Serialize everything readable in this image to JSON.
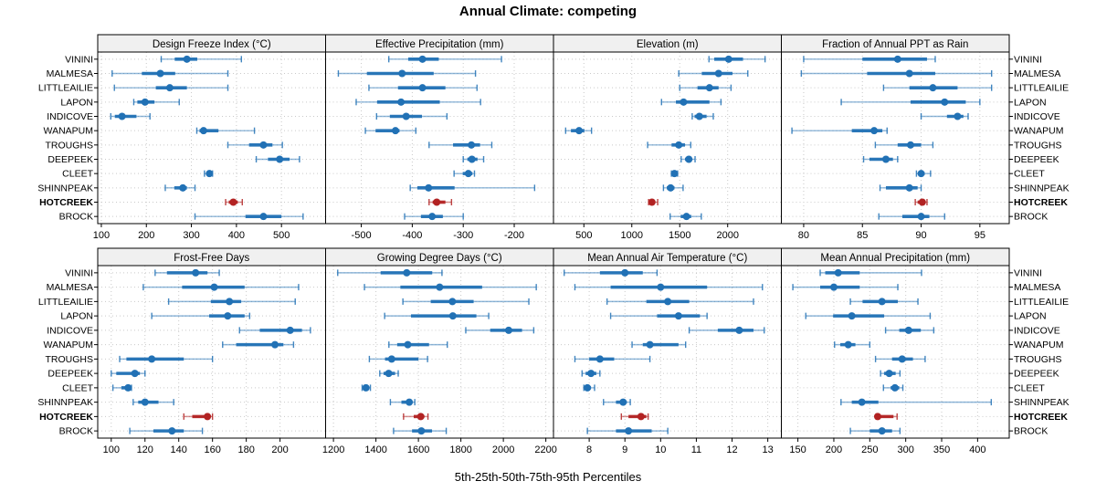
{
  "title": "Annual Climate: competing",
  "caption": "5th-25th-50th-75th-95th Percentiles",
  "percentile_labels": [
    "5th",
    "25th",
    "50th",
    "75th",
    "95th"
  ],
  "sites": [
    "VININI",
    "MALMESA",
    "LITTLEAILIE",
    "LAPON",
    "INDICOVE",
    "WANAPUM",
    "TROUGHS",
    "DEEPEEK",
    "CLEET",
    "SHINNPEAK",
    "HOTCREEK",
    "BROCK"
  ],
  "highlight_site": "HOTCREEK",
  "colors": {
    "series": "#2171b5",
    "highlight": "#b22222",
    "strip_bg": "#f0f0f0",
    "grid": "#c9c9c9",
    "border": "#000000",
    "text": "#000000"
  },
  "chart_data": {
    "type": "dotplot",
    "layout": "2 rows x 4 cols trellis, percentile whisker dotplots",
    "legend_position": "bottom caption",
    "grid": "dotted",
    "panels": [
      {
        "title": "Design Freeze Index (°C)",
        "row": 0,
        "col": 0,
        "xlim": [
          92,
          598
        ],
        "ticks": [
          100,
          200,
          300,
          400,
          500
        ],
        "values": [
          [
            233,
            263,
            290,
            313,
            411
          ],
          [
            124,
            190,
            231,
            264,
            381
          ],
          [
            129,
            221,
            252,
            290,
            381
          ],
          [
            172,
            180,
            197,
            218,
            273
          ],
          [
            121,
            130,
            146,
            178,
            208
          ],
          [
            312,
            318,
            327,
            360,
            440
          ],
          [
            381,
            428,
            460,
            480,
            502
          ],
          [
            444,
            470,
            496,
            518,
            540
          ],
          [
            329,
            334,
            340,
            344,
            347
          ],
          [
            242,
            262,
            281,
            290,
            308
          ],
          [
            376,
            383,
            393,
            403,
            413
          ],
          [
            308,
            420,
            460,
            500,
            548
          ]
        ]
      },
      {
        "title": "Effective Precipitation (mm)",
        "row": 0,
        "col": 1,
        "xlim": [
          -570,
          -123
        ],
        "ticks": [
          -500,
          -400,
          -300,
          -200
        ],
        "values": [
          [
            -446,
            -408,
            -380,
            -348,
            -225
          ],
          [
            -545,
            -489,
            -420,
            -358,
            -276
          ],
          [
            -485,
            -428,
            -380,
            -335,
            -273
          ],
          [
            -510,
            -469,
            -422,
            -346,
            -266
          ],
          [
            -470,
            -444,
            -412,
            -381,
            -332
          ],
          [
            -492,
            -472,
            -433,
            -425,
            -393
          ],
          [
            -367,
            -320,
            -284,
            -267,
            -244
          ],
          [
            -300,
            -292,
            -283,
            -272,
            -260
          ],
          [
            -318,
            -301,
            -290,
            -282,
            -278
          ],
          [
            -404,
            -390,
            -368,
            -317,
            -160
          ],
          [
            -367,
            -360,
            -352,
            -335,
            -323
          ],
          [
            -415,
            -383,
            -361,
            -340,
            -300
          ]
        ]
      },
      {
        "title": "Elevation (m)",
        "row": 0,
        "col": 2,
        "xlim": [
          183,
          2560
        ],
        "ticks": [
          500,
          1000,
          1500,
          2000
        ],
        "values": [
          [
            1805,
            1860,
            2010,
            2160,
            2390
          ],
          [
            1490,
            1730,
            1905,
            2050,
            2210
          ],
          [
            1500,
            1685,
            1810,
            1905,
            2035
          ],
          [
            1310,
            1460,
            1540,
            1810,
            1930
          ],
          [
            1630,
            1655,
            1705,
            1780,
            1850
          ],
          [
            310,
            365,
            450,
            505,
            580
          ],
          [
            1165,
            1415,
            1490,
            1555,
            1615
          ],
          [
            1515,
            1555,
            1595,
            1625,
            1660
          ],
          [
            1413,
            1425,
            1445,
            1465,
            1478
          ],
          [
            1330,
            1365,
            1405,
            1445,
            1535
          ],
          [
            1175,
            1190,
            1210,
            1245,
            1270
          ],
          [
            1400,
            1510,
            1570,
            1620,
            1725
          ]
        ]
      },
      {
        "title": "Fraction of Annual PPT as Rain",
        "row": 0,
        "col": 3,
        "xlim": [
          78.1,
          97.5
        ],
        "ticks": [
          80,
          85,
          90,
          95
        ],
        "values": [
          [
            80.0,
            85.0,
            88.0,
            90.5,
            91.2
          ],
          [
            79.8,
            85.4,
            89.0,
            91.2,
            96.0
          ],
          [
            86.8,
            89.0,
            91.0,
            93.1,
            96.0
          ],
          [
            83.2,
            89.1,
            92.0,
            93.8,
            95.0
          ],
          [
            90.0,
            92.2,
            93.1,
            93.6,
            94.0
          ],
          [
            79.0,
            84.1,
            86.0,
            86.7,
            87.1
          ],
          [
            86.1,
            88.0,
            89.1,
            90.0,
            91.0
          ],
          [
            85.1,
            85.6,
            87.0,
            87.6,
            88.0
          ],
          [
            89.6,
            89.8,
            90.0,
            90.3,
            90.8
          ],
          [
            86.5,
            87.0,
            89.0,
            89.7,
            90.0
          ],
          [
            89.5,
            89.7,
            90.1,
            90.3,
            90.5
          ],
          [
            86.4,
            88.4,
            90.0,
            90.7,
            92.0
          ]
        ]
      },
      {
        "title": "Frost-Free Days",
        "row": 1,
        "col": 0,
        "xlim": [
          92,
          227
        ],
        "ticks": [
          100,
          120,
          140,
          160,
          180,
          200
        ],
        "values": [
          [
            126,
            133,
            150,
            157,
            164
          ],
          [
            119,
            142,
            161,
            179,
            211
          ],
          [
            134,
            159,
            170,
            177,
            209
          ],
          [
            124,
            158,
            169,
            179,
            182
          ],
          [
            176,
            188,
            206,
            213,
            218
          ],
          [
            166,
            174,
            197,
            202,
            208
          ],
          [
            105,
            109,
            124,
            143,
            160
          ],
          [
            100,
            103,
            114,
            117,
            120
          ],
          [
            101,
            106,
            110,
            111,
            112
          ],
          [
            113,
            116,
            120,
            128,
            137
          ],
          [
            143,
            148,
            157,
            158,
            160
          ],
          [
            111,
            125,
            136,
            143,
            154
          ]
        ]
      },
      {
        "title": "Growing Degree Days (°C)",
        "row": 1,
        "col": 1,
        "xlim": [
          1163,
          2236
        ],
        "ticks": [
          1200,
          1400,
          1600,
          1800,
          2000,
          2200
        ],
        "values": [
          [
            1220,
            1422,
            1545,
            1665,
            1711
          ],
          [
            1346,
            1515,
            1700,
            1900,
            2155
          ],
          [
            1527,
            1658,
            1760,
            1860,
            2120
          ],
          [
            1441,
            1565,
            1762,
            1873,
            1931
          ],
          [
            1823,
            1938,
            2025,
            2088,
            2143
          ],
          [
            1461,
            1500,
            1550,
            1650,
            1736
          ],
          [
            1369,
            1443,
            1474,
            1600,
            1643
          ],
          [
            1418,
            1436,
            1460,
            1490,
            1505
          ],
          [
            1335,
            1340,
            1353,
            1368,
            1374
          ],
          [
            1468,
            1520,
            1557,
            1570,
            1583
          ],
          [
            1530,
            1578,
            1611,
            1628,
            1645
          ],
          [
            1483,
            1570,
            1614,
            1664,
            1731
          ]
        ]
      },
      {
        "title": "Mean Annual Air Temperature (°C)",
        "row": 1,
        "col": 2,
        "xlim": [
          7.0,
          13.38
        ],
        "ticks": [
          8,
          9,
          10,
          11,
          12,
          13
        ],
        "values": [
          [
            7.3,
            8.3,
            9.0,
            9.5,
            9.9
          ],
          [
            7.6,
            8.6,
            10.0,
            11.3,
            12.85
          ],
          [
            8.5,
            9.6,
            10.2,
            10.8,
            12.6
          ],
          [
            8.6,
            9.9,
            10.5,
            11.1,
            11.3
          ],
          [
            10.8,
            11.6,
            12.2,
            12.6,
            12.9
          ],
          [
            9.2,
            9.5,
            9.7,
            10.5,
            10.7
          ],
          [
            7.6,
            8.0,
            8.3,
            8.7,
            9.7
          ],
          [
            7.8,
            7.9,
            8.05,
            8.2,
            8.3
          ],
          [
            7.85,
            7.9,
            7.95,
            8.05,
            8.15
          ],
          [
            8.4,
            8.75,
            8.95,
            9.05,
            9.15
          ],
          [
            8.9,
            9.1,
            9.45,
            9.6,
            9.65
          ],
          [
            7.95,
            8.75,
            9.1,
            9.75,
            10.2
          ]
        ]
      },
      {
        "title": "Mean Annual Precipitation (mm)",
        "row": 1,
        "col": 3,
        "xlim": [
          127,
          444
        ],
        "ticks": [
          150,
          200,
          250,
          300,
          350,
          400
        ],
        "values": [
          [
            181,
            188,
            206,
            236,
            322
          ],
          [
            143,
            181,
            200,
            236,
            289
          ],
          [
            223,
            240,
            267,
            289,
            317
          ],
          [
            161,
            199,
            225,
            270,
            334
          ],
          [
            272,
            291,
            304,
            321,
            339
          ],
          [
            201,
            209,
            220,
            230,
            250
          ],
          [
            258,
            281,
            295,
            310,
            327
          ],
          [
            265,
            270,
            277,
            286,
            292
          ],
          [
            269,
            279,
            285,
            291,
            296
          ],
          [
            210,
            225,
            239,
            262,
            419
          ],
          [
            259,
            260,
            261,
            283,
            288
          ],
          [
            223,
            250,
            267,
            281,
            292
          ]
        ]
      }
    ]
  }
}
